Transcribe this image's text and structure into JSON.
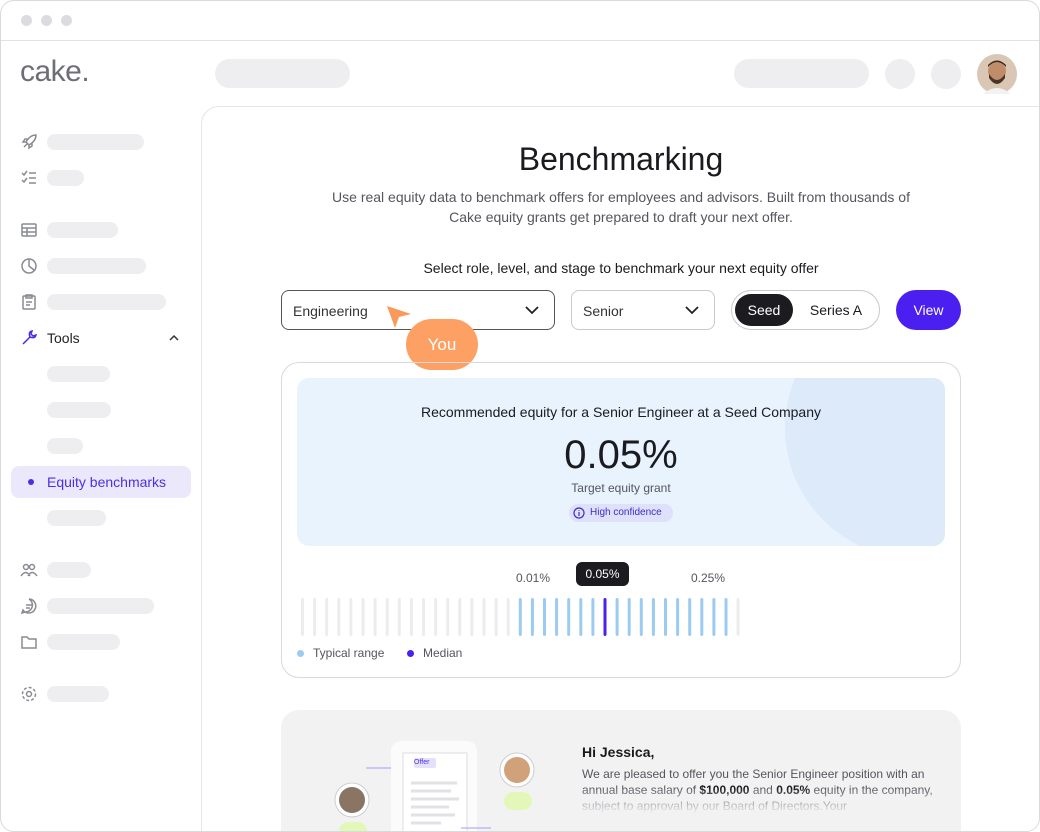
{
  "app": {
    "logo": "cake."
  },
  "sidebar": {
    "tools": "Tools",
    "active_item": "Equity benchmarks"
  },
  "page": {
    "title": "Benchmarking",
    "description": "Use real equity data to benchmark offers for employees and advisors. Built from thousands of Cake equity grants get prepared to draft your next offer.",
    "prompt": "Select role, level, and stage to benchmark your next equity offer"
  },
  "filters": {
    "role": "Engineering",
    "level": "Senior",
    "stages": [
      "Seed",
      "Series A"
    ],
    "action": "View",
    "cursor_label": "You"
  },
  "recommendation": {
    "caption": "Recommended equity for a Senior Engineer at a Seed Company",
    "value": "0.05%",
    "subtitle": "Target equity grant",
    "badge": "High confidence"
  },
  "range": {
    "low": "0.01%",
    "median": "0.05%",
    "high": "0.25%",
    "legend": [
      "Typical range",
      "Median"
    ]
  },
  "offer_preview": {
    "doc_label": "Offer",
    "greeting": "Hi Jessica,",
    "body": [
      {
        "text": "We are pleased to offer you the Senior Engineer position with an annual base salary of ",
        "bold": false
      },
      {
        "text": "$100,000",
        "bold": true
      },
      {
        "text": " and ",
        "bold": false
      },
      {
        "text": "0.05%",
        "bold": true
      },
      {
        "text": " equity in the company, subject to approval by our Board of Directors.Your",
        "bold": false
      }
    ]
  }
}
